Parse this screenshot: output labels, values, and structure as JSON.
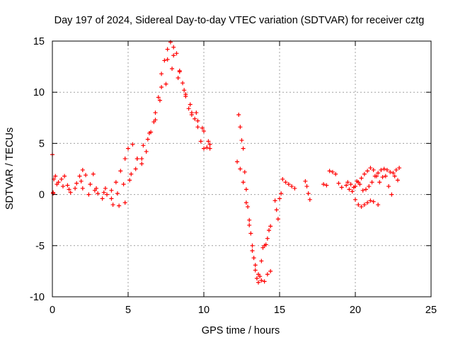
{
  "chart_data": {
    "type": "scatter",
    "title": "Day 197 of 2024, Sidereal Day-to-day VTEC variation (SDTVAR) for receiver cztg",
    "xlabel": "GPS time / hours",
    "ylabel": "SDTVAR / TECUs",
    "xlim": [
      0,
      25
    ],
    "ylim": [
      -10,
      15
    ],
    "xticks": [
      0,
      5,
      10,
      15,
      20,
      25
    ],
    "yticks": [
      -10,
      -5,
      0,
      5,
      10,
      15
    ],
    "grid": true,
    "marker": "+",
    "marker_color": "#ff0000",
    "series": [
      {
        "name": "SDTVAR",
        "x": [
          0.0,
          0.1,
          0.2,
          0.4,
          0.6,
          0.8,
          1.0,
          1.2,
          1.5,
          1.8,
          2.0,
          2.2,
          2.5,
          2.8,
          3.0,
          3.3,
          3.6,
          3.9,
          4.2,
          4.5,
          4.8,
          5.0,
          5.3,
          5.6,
          5.9,
          6.2,
          6.5,
          6.8,
          7.0,
          7.2,
          7.4,
          7.6,
          7.8,
          8.0,
          8.2,
          8.4,
          8.6,
          8.8,
          9.0,
          9.2,
          9.4,
          9.6,
          9.8,
          10.0,
          10.2,
          10.4,
          0.05,
          0.3,
          0.7,
          1.1,
          1.6,
          2.0,
          2.4,
          2.9,
          3.4,
          3.9,
          4.3,
          4.7,
          5.1,
          5.5,
          5.9,
          6.3,
          6.7,
          7.1,
          7.5,
          7.9,
          8.3,
          8.7,
          9.1,
          9.5,
          9.9,
          10.3,
          0.05,
          1.9,
          2.7,
          3.5,
          4.0,
          4.4,
          4.8,
          5.2,
          5.6,
          6.0,
          6.4,
          6.8,
          7.2,
          7.6,
          8.0,
          8.4,
          8.8,
          9.2,
          9.6,
          10.0,
          10.4,
          12.3,
          12.4,
          12.5,
          12.6,
          12.7,
          12.8,
          12.9,
          13.0,
          13.1,
          13.2,
          13.3,
          13.4,
          13.5,
          13.6,
          13.7,
          13.8,
          13.9,
          14.0,
          14.1,
          14.2,
          14.3,
          14.4,
          12.2,
          12.4,
          12.6,
          12.8,
          13.0,
          13.2,
          13.4,
          13.6,
          13.8,
          14.0,
          14.2,
          14.4,
          14.7,
          14.8,
          14.9,
          15.0,
          15.1,
          15.2,
          15.4,
          15.6,
          15.8,
          16.0,
          16.7,
          16.8,
          16.9,
          17.0,
          17.9,
          18.1,
          18.3,
          18.5,
          18.7,
          18.9,
          19.1,
          19.4,
          19.6,
          19.5,
          19.7,
          19.9,
          20.1,
          20.3,
          20.5,
          20.7,
          20.9,
          21.1,
          21.3,
          21.5,
          21.7,
          21.9,
          22.1,
          22.3,
          22.5,
          22.7,
          22.9,
          19.8,
          20.0,
          20.2,
          20.4,
          20.6,
          20.8,
          21.0,
          21.2,
          21.4,
          21.6,
          21.8,
          22.0,
          22.2,
          22.4,
          22.6,
          22.8,
          20.0,
          20.2,
          20.4,
          20.6,
          20.8,
          21.0,
          21.2,
          21.5
        ],
        "y": [
          3.9,
          1.5,
          1.8,
          1.2,
          1.5,
          1.8,
          0.9,
          0.2,
          0.6,
          1.8,
          2.4,
          1.9,
          1.0,
          0.4,
          0.1,
          -0.4,
          0.0,
          0.4,
          1.2,
          2.3,
          3.5,
          4.5,
          4.9,
          3.5,
          3.0,
          4.2,
          6.1,
          7.3,
          9.5,
          11.8,
          13.1,
          14.2,
          14.9,
          14.4,
          13.8,
          12.1,
          10.9,
          9.6,
          8.4,
          8.0,
          7.4,
          6.6,
          5.2,
          4.5,
          4.6,
          4.9,
          0.1,
          1.0,
          0.8,
          0.5,
          1.1,
          0.6,
          0.0,
          0.6,
          0.2,
          -0.4,
          0.1,
          1.0,
          1.4,
          2.5,
          3.5,
          5.4,
          7.1,
          9.2,
          10.8,
          12.3,
          11.4,
          10.2,
          8.8,
          8.0,
          6.5,
          5.2,
          0.2,
          1.3,
          2.0,
          0.6,
          -1.0,
          -1.1,
          -0.8,
          2.0,
          3.5,
          4.8,
          6.0,
          8.0,
          10.5,
          13.2,
          13.6,
          12.0,
          9.8,
          7.8,
          7.2,
          6.2,
          4.5,
          7.8,
          6.6,
          5.3,
          4.5,
          2.2,
          0.5,
          -1.2,
          -2.5,
          -3.8,
          -5.0,
          -6.2,
          -7.4,
          -8.2,
          -8.6,
          -8.0,
          -6.5,
          -5.2,
          -5.0,
          -4.9,
          -4.3,
          -3.5,
          -3.1,
          3.2,
          2.5,
          1.2,
          -0.8,
          -3.0,
          -5.5,
          -6.9,
          -7.8,
          -8.4,
          -8.5,
          -7.8,
          -7.5,
          -0.6,
          -1.5,
          -2.4,
          -0.4,
          0.1,
          1.5,
          1.2,
          1.0,
          0.8,
          0.6,
          1.3,
          0.8,
          0.1,
          -0.5,
          1.0,
          0.9,
          2.3,
          2.2,
          2.0,
          1.1,
          0.7,
          0.9,
          0.5,
          1.2,
          1.0,
          0.7,
          1.3,
          1.0,
          0.4,
          0.5,
          0.8,
          1.2,
          1.8,
          2.1,
          2.4,
          2.5,
          2.4,
          2.2,
          2.1,
          2.4,
          2.6,
          0.3,
          0.8,
          1.2,
          1.6,
          2.0,
          2.3,
          2.6,
          2.4,
          1.8,
          1.2,
          1.7,
          1.8,
          0.8,
          0.0,
          1.8,
          1.4,
          -0.5,
          -1.0,
          -1.2,
          -1.0,
          -0.8,
          -0.6,
          -0.7,
          -1.0
        ]
      }
    ]
  }
}
